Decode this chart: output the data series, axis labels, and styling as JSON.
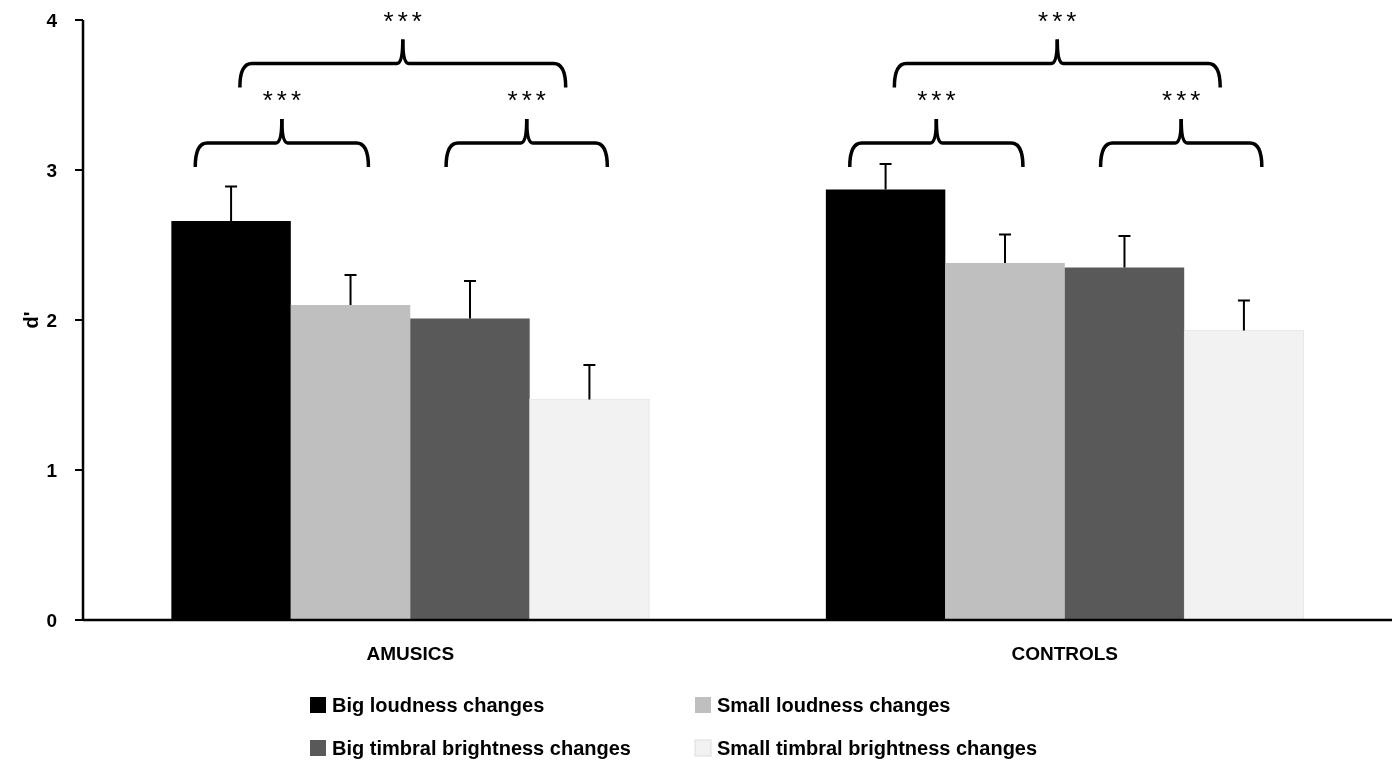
{
  "chart_data": {
    "type": "bar",
    "ylabel": "d'",
    "categories": [
      "AMUSICS",
      "CONTROLS"
    ],
    "ylim": [
      0,
      4
    ],
    "yticks": [
      0,
      1,
      2,
      3,
      4
    ],
    "grid": false,
    "legend": "bottom",
    "series": [
      {
        "name": "Big loudness changes",
        "color": "#000000",
        "values": [
          2.66,
          2.87
        ],
        "errors": [
          [
            2.66,
            2.89
          ],
          [
            2.87,
            3.04
          ]
        ]
      },
      {
        "name": "Small loudness changes",
        "color": "#bfbfbf",
        "values": [
          2.1,
          2.38
        ],
        "errors": [
          [
            2.1,
            2.3
          ],
          [
            2.38,
            2.57
          ]
        ]
      },
      {
        "name": "Big timbral brightness changes",
        "color": "#595959",
        "values": [
          2.01,
          2.35
        ],
        "errors": [
          [
            2.01,
            2.26
          ],
          [
            2.35,
            2.56
          ]
        ]
      },
      {
        "name": "Small timbral brightness changes",
        "color": "#f2f2f2",
        "values": [
          1.47,
          1.93
        ],
        "errors": [
          [
            1.47,
            1.7
          ],
          [
            1.93,
            2.13
          ]
        ]
      }
    ],
    "annotations": [
      "***",
      "***",
      "***",
      "***",
      "***",
      "***"
    ]
  }
}
